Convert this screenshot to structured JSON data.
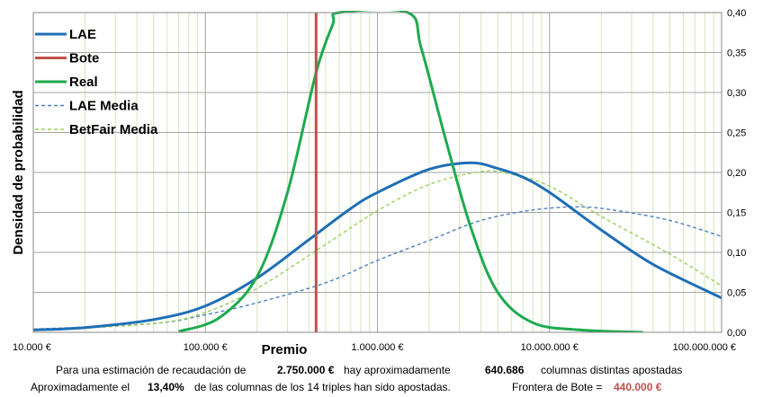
{
  "chart_data": {
    "type": "line",
    "x_scale": "log",
    "xlabel": "Premio",
    "ylabel": "Densidad de probabilidad",
    "xlim": [
      10000,
      100000000
    ],
    "ylim": [
      0,
      0.4
    ],
    "x_tick_labels": [
      "10.000 €",
      "100.000 €",
      "1.000.000 €",
      "10.000.000 €",
      "100.000.000 €"
    ],
    "y_tick_labels": [
      "0,00",
      "0,05",
      "0,10",
      "0,15",
      "0,20",
      "0,25",
      "0,30",
      "0,35",
      "0,40"
    ],
    "grid": true,
    "legend_position": "top-left",
    "series": [
      {
        "name": "LAE",
        "color": "#1f6fb5",
        "style": "solid",
        "points": [
          [
            10000,
            0.003
          ],
          [
            20000,
            0.006
          ],
          [
            50000,
            0.016
          ],
          [
            100000,
            0.033
          ],
          [
            200000,
            0.068
          ],
          [
            400000,
            0.116
          ],
          [
            700000,
            0.155
          ],
          [
            1000000,
            0.175
          ],
          [
            2000000,
            0.204
          ],
          [
            3500000,
            0.212
          ],
          [
            5000000,
            0.205
          ],
          [
            7000000,
            0.194
          ],
          [
            10000000,
            0.175
          ],
          [
            20000000,
            0.128
          ],
          [
            40000000,
            0.085
          ],
          [
            100000000,
            0.043
          ]
        ]
      },
      {
        "name": "Bote",
        "color": "#c0504d",
        "style": "solid",
        "vertical_x": 440000
      },
      {
        "name": "Real",
        "color": "#1faa4f",
        "style": "solid",
        "points": [
          [
            70000,
            0.001
          ],
          [
            120000,
            0.018
          ],
          [
            200000,
            0.07
          ],
          [
            300000,
            0.175
          ],
          [
            440000,
            0.325
          ],
          [
            550000,
            0.385
          ],
          [
            600000,
            0.4
          ],
          [
            1500000,
            0.4
          ],
          [
            1800000,
            0.355
          ],
          [
            2500000,
            0.24
          ],
          [
            3500000,
            0.13
          ],
          [
            5000000,
            0.05
          ],
          [
            8000000,
            0.012
          ],
          [
            15000000,
            0.003
          ],
          [
            35000000,
            0.0
          ]
        ]
      },
      {
        "name": "LAE Media",
        "color": "#4f81bd",
        "style": "dashed",
        "points": [
          [
            10000,
            0.004
          ],
          [
            50000,
            0.011
          ],
          [
            100000,
            0.022
          ],
          [
            200000,
            0.037
          ],
          [
            500000,
            0.062
          ],
          [
            1000000,
            0.09
          ],
          [
            2000000,
            0.115
          ],
          [
            4000000,
            0.14
          ],
          [
            8000000,
            0.153
          ],
          [
            15000000,
            0.157
          ],
          [
            25000000,
            0.152
          ],
          [
            50000000,
            0.14
          ],
          [
            100000000,
            0.12
          ]
        ]
      },
      {
        "name": "BetFair Media",
        "color": "#9bd05c",
        "style": "dashed",
        "points": [
          [
            10000,
            0.002
          ],
          [
            50000,
            0.011
          ],
          [
            100000,
            0.025
          ],
          [
            200000,
            0.055
          ],
          [
            500000,
            0.11
          ],
          [
            1000000,
            0.152
          ],
          [
            2000000,
            0.185
          ],
          [
            4000000,
            0.201
          ],
          [
            6000000,
            0.198
          ],
          [
            10000000,
            0.183
          ],
          [
            20000000,
            0.145
          ],
          [
            50000000,
            0.098
          ],
          [
            100000000,
            0.058
          ]
        ]
      }
    ]
  },
  "footer": {
    "line1_a": "Para  una estimación de recaudación de",
    "line1_value": "2.750.000 €",
    "line1_b": "hay aproximadamente",
    "line1_count": "640.686",
    "line1_c": "columnas distintas apostadas",
    "line2_a": "Aproximadamente el",
    "line2_pct": "13,40%",
    "line2_b": "de las columnas de los 14 triples han sido apostadas.",
    "line2_c": "Frontera de Bote =",
    "line2_bote": "440.000 €"
  }
}
